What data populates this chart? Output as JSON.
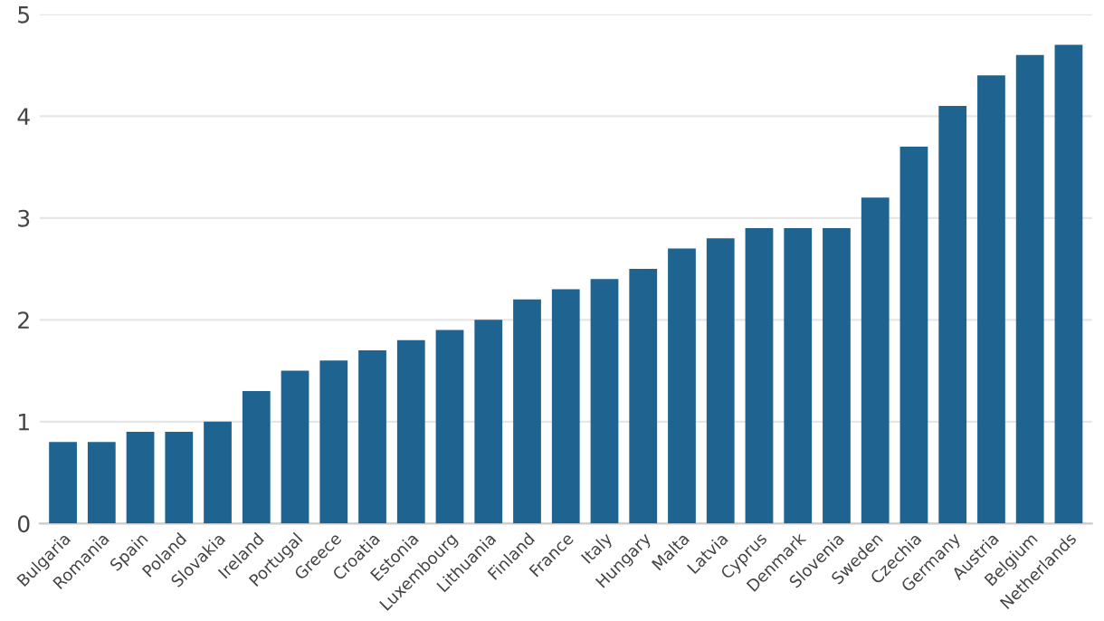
{
  "chart_data": {
    "type": "bar",
    "categories": [
      "Bulgaria",
      "Romania",
      "Spain",
      "Poland",
      "Slovakia",
      "Ireland",
      "Portugal",
      "Greece",
      "Croatia",
      "Estonia",
      "Luxembourg",
      "Lithuania",
      "Finland",
      "France",
      "Italy",
      "Hungary",
      "Malta",
      "Latvia",
      "Cyprus",
      "Denmark",
      "Slovenia",
      "Sweden",
      "Czechia",
      "Germany",
      "Austria",
      "Belgium",
      "Netherlands"
    ],
    "values": [
      0.8,
      0.8,
      0.9,
      0.9,
      1.0,
      1.3,
      1.5,
      1.6,
      1.7,
      1.8,
      1.9,
      2.0,
      2.2,
      2.3,
      2.4,
      2.5,
      2.7,
      2.8,
      2.9,
      2.9,
      2.9,
      3.2,
      3.7,
      4.1,
      4.4,
      4.6,
      4.7
    ],
    "color": "#1f6391",
    "ylim": [
      0,
      5
    ],
    "yticks": [
      0,
      1,
      2,
      3,
      4,
      5
    ],
    "grid": "y"
  }
}
